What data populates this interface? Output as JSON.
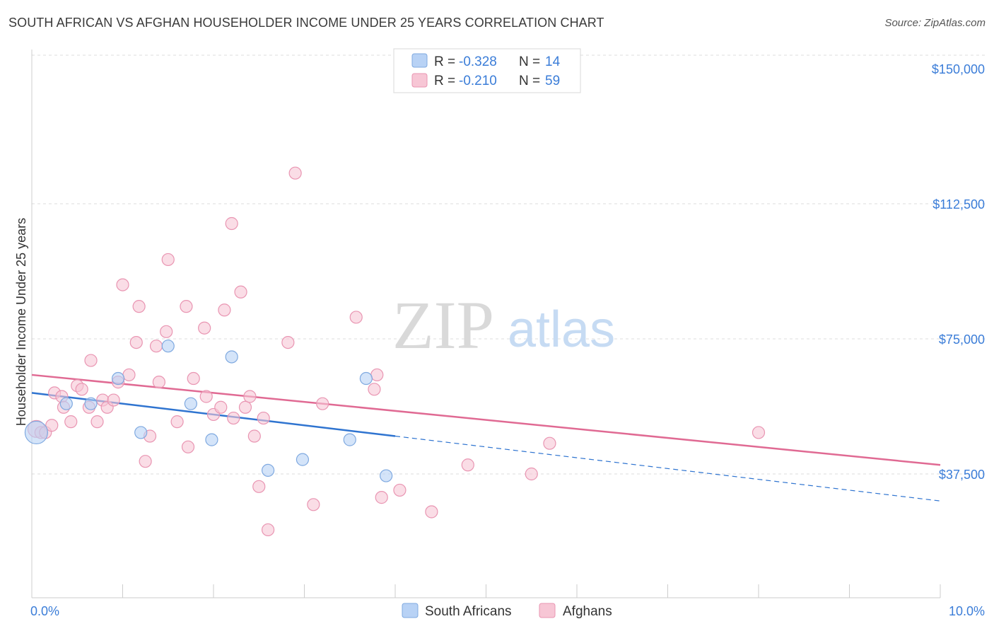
{
  "title": "SOUTH AFRICAN VS AFGHAN HOUSEHOLDER INCOME UNDER 25 YEARS CORRELATION CHART",
  "source": "Source: ZipAtlas.com",
  "watermark": {
    "zip": "ZIP",
    "atlas": "atlas"
  },
  "colors": {
    "blue_fill": "#b8d2f5",
    "blue_stroke": "#7fa9e0",
    "blue_line": "#2f74d0",
    "pink_fill": "#f7c6d5",
    "pink_stroke": "#e995b2",
    "pink_line": "#e06a93",
    "label_blue": "#3b7dd8"
  },
  "legend": {
    "rows": [
      {
        "r_label": "R =",
        "r_value": "-0.328",
        "n_label": "N =",
        "n_value": "14",
        "series": "South Africans"
      },
      {
        "r_label": "R =",
        "r_value": "-0.210",
        "n_label": "N =",
        "n_value": "59",
        "series": "Afghans"
      }
    ]
  },
  "chart_data": {
    "type": "scatter",
    "title": "SOUTH AFRICAN VS AFGHAN HOUSEHOLDER INCOME UNDER 25 YEARS CORRELATION CHART",
    "xlabel": "",
    "ylabel": "Householder Income Under 25 years",
    "xlim": [
      0,
      10
    ],
    "ylim": [
      0,
      155000
    ],
    "x_tick_labels": [
      "0.0%",
      "10.0%"
    ],
    "y_ticks": [
      37500,
      75000,
      112500,
      150000
    ],
    "y_tick_labels": [
      "$37,500",
      "$75,000",
      "$112,500",
      "$150,000"
    ],
    "grid": true,
    "legend_position": "top-center",
    "series": [
      {
        "name": "South Africans",
        "points": [
          [
            0.05,
            49000
          ],
          [
            0.38,
            57000
          ],
          [
            0.65,
            57000
          ],
          [
            0.95,
            64000
          ],
          [
            1.2,
            49000
          ],
          [
            1.5,
            73000
          ],
          [
            1.75,
            57000
          ],
          [
            1.98,
            47000
          ],
          [
            2.2,
            70000
          ],
          [
            2.6,
            38500
          ],
          [
            2.98,
            41500
          ],
          [
            3.5,
            47000
          ],
          [
            3.68,
            64000
          ],
          [
            3.9,
            37000
          ]
        ],
        "trend": {
          "x": [
            0,
            4.0
          ],
          "y": [
            60000,
            48000
          ]
        },
        "trend_extension": {
          "x": [
            4.0,
            10.0
          ],
          "y": [
            48000,
            30000
          ]
        }
      },
      {
        "name": "Afghans",
        "points": [
          [
            0.05,
            50000
          ],
          [
            0.1,
            49000
          ],
          [
            0.15,
            49000
          ],
          [
            0.22,
            51000
          ],
          [
            0.25,
            60000
          ],
          [
            0.33,
            59000
          ],
          [
            0.35,
            56000
          ],
          [
            0.43,
            52000
          ],
          [
            0.5,
            62000
          ],
          [
            0.55,
            61000
          ],
          [
            0.63,
            56000
          ],
          [
            0.65,
            69000
          ],
          [
            0.72,
            52000
          ],
          [
            0.78,
            58000
          ],
          [
            0.83,
            56000
          ],
          [
            0.9,
            58000
          ],
          [
            0.95,
            63000
          ],
          [
            1.0,
            90000
          ],
          [
            1.07,
            65000
          ],
          [
            1.15,
            74000
          ],
          [
            1.18,
            84000
          ],
          [
            1.25,
            41000
          ],
          [
            1.3,
            48000
          ],
          [
            1.37,
            73000
          ],
          [
            1.4,
            63000
          ],
          [
            1.48,
            77000
          ],
          [
            1.5,
            97000
          ],
          [
            1.6,
            52000
          ],
          [
            1.7,
            84000
          ],
          [
            1.72,
            45000
          ],
          [
            1.78,
            64000
          ],
          [
            1.9,
            78000
          ],
          [
            1.92,
            59000
          ],
          [
            2.0,
            54000
          ],
          [
            2.08,
            56000
          ],
          [
            2.12,
            83000
          ],
          [
            2.2,
            107000
          ],
          [
            2.22,
            53000
          ],
          [
            2.3,
            88000
          ],
          [
            2.35,
            56000
          ],
          [
            2.4,
            59000
          ],
          [
            2.45,
            48000
          ],
          [
            2.5,
            34000
          ],
          [
            2.55,
            53000
          ],
          [
            2.6,
            22000
          ],
          [
            2.82,
            74000
          ],
          [
            2.9,
            121000
          ],
          [
            3.1,
            29000
          ],
          [
            3.2,
            57000
          ],
          [
            3.57,
            81000
          ],
          [
            3.77,
            61000
          ],
          [
            3.8,
            65000
          ],
          [
            3.85,
            31000
          ],
          [
            4.05,
            33000
          ],
          [
            4.4,
            27000
          ],
          [
            4.8,
            40000
          ],
          [
            5.5,
            37500
          ],
          [
            5.7,
            46000
          ],
          [
            8.0,
            49000
          ]
        ],
        "trend": {
          "x": [
            0,
            10.0
          ],
          "y": [
            65000,
            40000
          ]
        }
      }
    ]
  }
}
